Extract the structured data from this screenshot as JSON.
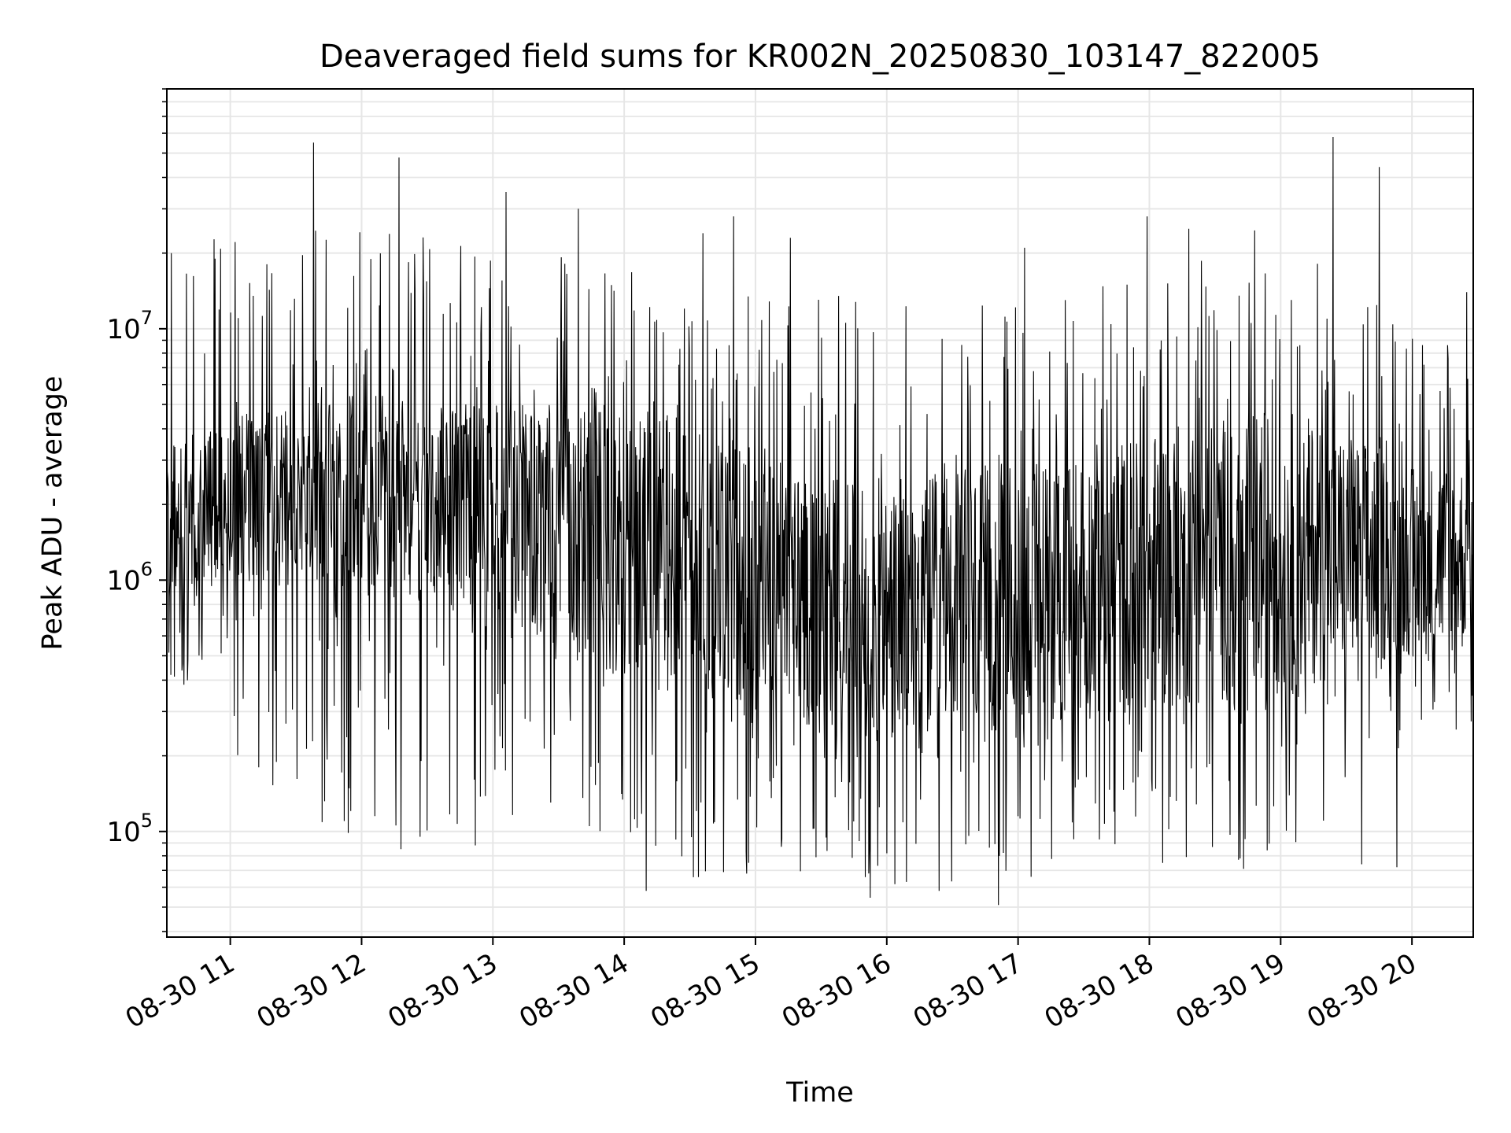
{
  "chart_data": {
    "type": "line",
    "title": "Deaveraged field sums for KR002N_20250830_103147_822005",
    "xlabel": "Time",
    "ylabel": "Peak ADU - average",
    "y_scale": "log",
    "ylim": [
      38000,
      90000000
    ],
    "xlim": [
      "2025-08-30T10:31",
      "2025-08-30T20:28"
    ],
    "grid": true,
    "legend": "none",
    "line_color": "#000000",
    "x_ticks": [
      {
        "value": "2025-08-30T11:00",
        "label": "08-30 11"
      },
      {
        "value": "2025-08-30T12:00",
        "label": "08-30 12"
      },
      {
        "value": "2025-08-30T13:00",
        "label": "08-30 13"
      },
      {
        "value": "2025-08-30T14:00",
        "label": "08-30 14"
      },
      {
        "value": "2025-08-30T15:00",
        "label": "08-30 15"
      },
      {
        "value": "2025-08-30T16:00",
        "label": "08-30 16"
      },
      {
        "value": "2025-08-30T17:00",
        "label": "08-30 17"
      },
      {
        "value": "2025-08-30T18:00",
        "label": "08-30 18"
      },
      {
        "value": "2025-08-30T19:00",
        "label": "08-30 19"
      },
      {
        "value": "2025-08-30T20:00",
        "label": "08-30 20"
      }
    ],
    "y_ticks": [
      {
        "value": 100000,
        "base": "10",
        "exp": "5"
      },
      {
        "value": 1000000,
        "base": "10",
        "exp": "6"
      },
      {
        "value": 10000000,
        "base": "10",
        "exp": "7"
      }
    ],
    "series": [
      {
        "style": "dense-line",
        "data_nature": "approximate reconstruction of a dense noisy trace (~1.6 samples/min)",
        "envelope_hourly": [
          {
            "time": "2025-08-30T10:31",
            "typical_low": 800000,
            "typical_high": 3500000,
            "min": 340000,
            "max": 20000000
          },
          {
            "time": "2025-08-30T11:00",
            "typical_low": 900000,
            "typical_high": 4500000,
            "min": 180000,
            "max": 55000000
          },
          {
            "time": "2025-08-30T12:00",
            "typical_low": 900000,
            "typical_high": 5500000,
            "min": 85000,
            "max": 45000000
          },
          {
            "time": "2025-08-30T13:00",
            "typical_low": 700000,
            "typical_high": 5000000,
            "min": 95000,
            "max": 35000000
          },
          {
            "time": "2025-08-30T14:00",
            "typical_low": 400000,
            "typical_high": 5000000,
            "min": 58000,
            "max": 28000000
          },
          {
            "time": "2025-08-30T15:00",
            "typical_low": 300000,
            "typical_high": 3500000,
            "min": 68000,
            "max": 25000000
          },
          {
            "time": "2025-08-30T16:00",
            "typical_low": 200000,
            "typical_high": 2500000,
            "min": 51000,
            "max": 22000000
          },
          {
            "time": "2025-08-30T17:00",
            "typical_low": 250000,
            "typical_high": 3000000,
            "min": 66000,
            "max": 20000000
          },
          {
            "time": "2025-08-30T18:00",
            "typical_low": 300000,
            "typical_high": 4000000,
            "min": 71000,
            "max": 28000000
          },
          {
            "time": "2025-08-30T19:00",
            "typical_low": 350000,
            "typical_high": 5000000,
            "min": 74000,
            "max": 58000000
          },
          {
            "time": "2025-08-30T20:00",
            "typical_low": 500000,
            "typical_high": 3000000,
            "min": 240000,
            "max": 14000000
          }
        ],
        "notable_points": [
          {
            "time": "2025-08-30T10:33",
            "value": 20000000
          },
          {
            "time": "2025-08-30T10:53",
            "value": 19000000
          },
          {
            "time": "2025-08-30T11:13",
            "value": 180000
          },
          {
            "time": "2025-08-30T11:38",
            "value": 55000000
          },
          {
            "time": "2025-08-30T11:52",
            "value": 110000
          },
          {
            "time": "2025-08-30T12:17",
            "value": 48000000
          },
          {
            "time": "2025-08-30T12:18",
            "value": 85000
          },
          {
            "time": "2025-08-30T12:52",
            "value": 88000
          },
          {
            "time": "2025-08-30T13:06",
            "value": 35000000
          },
          {
            "time": "2025-08-30T13:39",
            "value": 30000000
          },
          {
            "time": "2025-08-30T13:44",
            "value": 105000
          },
          {
            "time": "2025-08-30T14:10",
            "value": 58000
          },
          {
            "time": "2025-08-30T14:36",
            "value": 24000000
          },
          {
            "time": "2025-08-30T14:50",
            "value": 28000000
          },
          {
            "time": "2025-08-30T14:56",
            "value": 68000
          },
          {
            "time": "2025-08-30T15:16",
            "value": 23000000
          },
          {
            "time": "2025-08-30T16:09",
            "value": 63000
          },
          {
            "time": "2025-08-30T16:24",
            "value": 58000
          },
          {
            "time": "2025-08-30T16:51",
            "value": 51000
          },
          {
            "time": "2025-08-30T17:03",
            "value": 21000000
          },
          {
            "time": "2025-08-30T17:06",
            "value": 66000
          },
          {
            "time": "2025-08-30T17:59",
            "value": 28000000
          },
          {
            "time": "2025-08-30T18:18",
            "value": 25000000
          },
          {
            "time": "2025-08-30T18:43",
            "value": 71000
          },
          {
            "time": "2025-08-30T19:24",
            "value": 58000000
          },
          {
            "time": "2025-08-30T19:37",
            "value": 74000
          },
          {
            "time": "2025-08-30T19:45",
            "value": 44000000
          },
          {
            "time": "2025-08-30T19:53",
            "value": 72000
          },
          {
            "time": "2025-08-30T20:25",
            "value": 14000000
          }
        ]
      }
    ]
  }
}
